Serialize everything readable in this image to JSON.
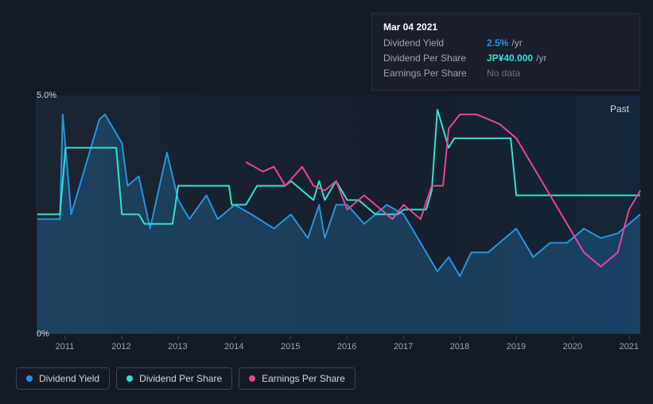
{
  "tooltip": {
    "date": "Mar 04 2021",
    "rows": [
      {
        "label": "Dividend Yield",
        "value": "2.5%",
        "unit": "/yr",
        "color": "#2394df"
      },
      {
        "label": "Dividend Per Share",
        "value": "JP¥40.000",
        "unit": "/yr",
        "color": "#33e1d0"
      },
      {
        "label": "Earnings Per Share",
        "value": "No data",
        "nodata": true
      }
    ]
  },
  "chart": {
    "past_label": "Past",
    "background_gradient": [
      "#1a2533",
      "#17202c",
      "#142639"
    ],
    "grid_color": "#2a3442",
    "y_axis": {
      "min": 0,
      "max": 5,
      "ticks": [
        {
          "v": 5,
          "label": "5.0%"
        },
        {
          "v": 0,
          "label": "0%"
        }
      ],
      "label_color": "#cfd6e1",
      "fontsize": 11
    },
    "x_axis": {
      "min": 2010.5,
      "max": 2021.2,
      "ticks": [
        2011,
        2012,
        2013,
        2014,
        2015,
        2016,
        2017,
        2018,
        2019,
        2020,
        2021
      ],
      "label_color": "#9aa3b2",
      "fontsize": 11
    },
    "series": [
      {
        "name": "Dividend Yield",
        "color": "#2394df",
        "fill_opacity": 0.25,
        "line_width": 2,
        "data": [
          [
            2010.5,
            2.4
          ],
          [
            2010.9,
            2.4
          ],
          [
            2010.95,
            4.6
          ],
          [
            2011.1,
            2.5
          ],
          [
            2011.6,
            4.5
          ],
          [
            2011.7,
            4.6
          ],
          [
            2012.0,
            4.0
          ],
          [
            2012.1,
            3.1
          ],
          [
            2012.3,
            3.3
          ],
          [
            2012.5,
            2.2
          ],
          [
            2012.8,
            3.8
          ],
          [
            2013.0,
            2.8
          ],
          [
            2013.2,
            2.4
          ],
          [
            2013.5,
            2.9
          ],
          [
            2013.7,
            2.4
          ],
          [
            2014.0,
            2.7
          ],
          [
            2014.3,
            2.5
          ],
          [
            2014.7,
            2.2
          ],
          [
            2015.0,
            2.5
          ],
          [
            2015.3,
            2.0
          ],
          [
            2015.5,
            2.7
          ],
          [
            2015.6,
            2.0
          ],
          [
            2015.8,
            2.7
          ],
          [
            2016.0,
            2.7
          ],
          [
            2016.3,
            2.3
          ],
          [
            2016.7,
            2.7
          ],
          [
            2017.0,
            2.5
          ],
          [
            2017.3,
            1.9
          ],
          [
            2017.6,
            1.3
          ],
          [
            2017.8,
            1.6
          ],
          [
            2018.0,
            1.2
          ],
          [
            2018.2,
            1.7
          ],
          [
            2018.5,
            1.7
          ],
          [
            2018.8,
            2.0
          ],
          [
            2019.0,
            2.2
          ],
          [
            2019.3,
            1.6
          ],
          [
            2019.6,
            1.9
          ],
          [
            2019.9,
            1.9
          ],
          [
            2020.2,
            2.2
          ],
          [
            2020.5,
            2.0
          ],
          [
            2020.8,
            2.1
          ],
          [
            2021.0,
            2.3
          ],
          [
            2021.2,
            2.5
          ]
        ]
      },
      {
        "name": "Dividend Per Share",
        "color": "#33e1d0",
        "fill_opacity": 0,
        "line_width": 2,
        "data": [
          [
            2010.5,
            2.5
          ],
          [
            2010.9,
            2.5
          ],
          [
            2011.0,
            3.9
          ],
          [
            2011.9,
            3.9
          ],
          [
            2012.0,
            2.5
          ],
          [
            2012.3,
            2.5
          ],
          [
            2012.4,
            2.3
          ],
          [
            2012.9,
            2.3
          ],
          [
            2013.0,
            3.1
          ],
          [
            2013.9,
            3.1
          ],
          [
            2013.95,
            2.7
          ],
          [
            2014.2,
            2.7
          ],
          [
            2014.4,
            3.1
          ],
          [
            2014.9,
            3.1
          ],
          [
            2015.0,
            3.2
          ],
          [
            2015.4,
            2.8
          ],
          [
            2015.5,
            3.2
          ],
          [
            2015.6,
            2.8
          ],
          [
            2015.8,
            3.2
          ],
          [
            2016.0,
            2.8
          ],
          [
            2016.2,
            2.8
          ],
          [
            2016.5,
            2.5
          ],
          [
            2016.9,
            2.5
          ],
          [
            2017.0,
            2.6
          ],
          [
            2017.4,
            2.6
          ],
          [
            2017.5,
            3.0
          ],
          [
            2017.6,
            4.7
          ],
          [
            2017.8,
            3.9
          ],
          [
            2017.9,
            4.1
          ],
          [
            2018.5,
            4.1
          ],
          [
            2018.9,
            4.1
          ],
          [
            2019.0,
            2.9
          ],
          [
            2019.2,
            2.9
          ],
          [
            2021.2,
            2.9
          ]
        ]
      },
      {
        "name": "Earnings Per Share",
        "color": "#e64598",
        "fill_opacity": 0,
        "line_width": 2,
        "data": [
          [
            2014.2,
            3.6
          ],
          [
            2014.5,
            3.4
          ],
          [
            2014.7,
            3.5
          ],
          [
            2014.9,
            3.1
          ],
          [
            2015.2,
            3.5
          ],
          [
            2015.4,
            3.1
          ],
          [
            2015.6,
            3.0
          ],
          [
            2015.8,
            3.2
          ],
          [
            2016.0,
            2.6
          ],
          [
            2016.3,
            2.9
          ],
          [
            2016.5,
            2.7
          ],
          [
            2016.8,
            2.4
          ],
          [
            2017.0,
            2.7
          ],
          [
            2017.3,
            2.4
          ],
          [
            2017.5,
            3.1
          ],
          [
            2017.7,
            3.1
          ],
          [
            2017.8,
            4.3
          ],
          [
            2018.0,
            4.6
          ],
          [
            2018.3,
            4.6
          ],
          [
            2018.7,
            4.4
          ],
          [
            2019.0,
            4.1
          ],
          [
            2019.3,
            3.5
          ],
          [
            2019.6,
            2.9
          ],
          [
            2019.9,
            2.3
          ],
          [
            2020.2,
            1.7
          ],
          [
            2020.5,
            1.4
          ],
          [
            2020.8,
            1.7
          ],
          [
            2021.0,
            2.6
          ],
          [
            2021.2,
            3.0
          ]
        ]
      }
    ]
  },
  "legend": {
    "border_color": "#3a4454",
    "text_color": "#cfd6e1",
    "items": [
      {
        "label": "Dividend Yield",
        "color": "#2394df"
      },
      {
        "label": "Dividend Per Share",
        "color": "#33e1d0"
      },
      {
        "label": "Earnings Per Share",
        "color": "#e64598"
      }
    ]
  }
}
